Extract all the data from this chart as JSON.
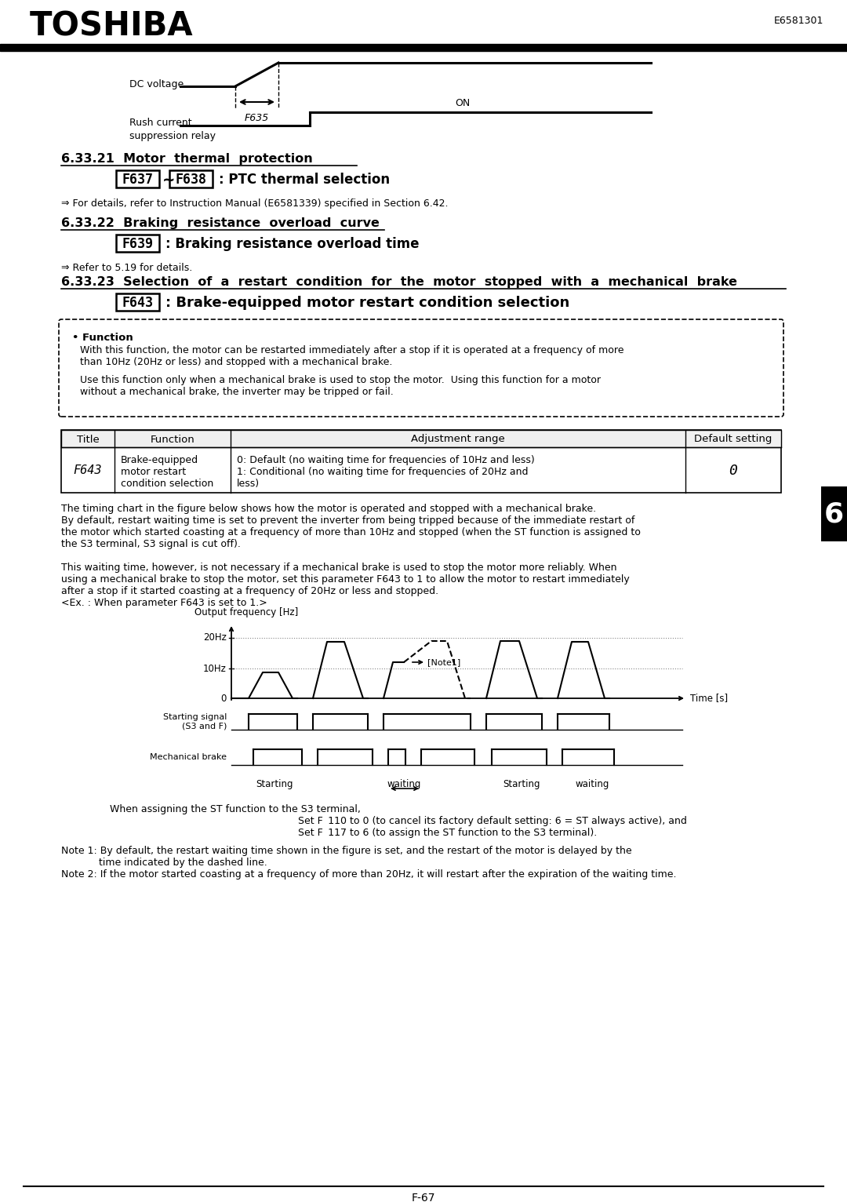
{
  "title_logo": "TOSHIBA",
  "doc_number": "E6581301",
  "page_number": "F-67",
  "bg_color": "#ffffff",
  "text_color": "#000000",
  "dc_voltage_label": "DC voltage",
  "f635_label": "F635",
  "rush_current_label": "Rush current\nsuppression relay",
  "on_label": "ON",
  "section_6_33_21_title": "6.33.21  Motor  thermal  protection",
  "section_6_33_22_title": "6.33.22  Braking  resistance  overload  curve",
  "section_6_33_23_title": "6.33.23  Selection  of  a  restart  condition  for  the  motor  stopped  with  a  mechanical  brake",
  "section_6_33_21_sub": ": PTC thermal selection",
  "section_6_33_22_sub": ": Braking resistance overload time",
  "section_6_33_23_sub": ": Brake-equipped motor restart condition selection",
  "section_6_33_21_note": "⇒ For details, refer to Instruction Manual (E6581339) specified in Section 6.42.",
  "section_6_33_22_note": "⇒ Refer to 5.19 for details.",
  "function_box_title": "• Function",
  "function_box_line1": "With this function, the motor can be restarted immediately after a stop if it is operated at a frequency of more",
  "function_box_line2": "than 10Hz (20Hz or less) and stopped with a mechanical brake.",
  "function_box_line3": "Use this function only when a mechanical brake is used to stop the motor.  Using this function for a motor",
  "function_box_line4": "without a mechanical brake, the inverter may be tripped or fail.",
  "table_headers": [
    "Title",
    "Function",
    "Adjustment range",
    "Default setting"
  ],
  "table_row_func1": "Brake-equipped",
  "table_row_func2": "motor restart",
  "table_row_func3": "condition selection",
  "table_row_adj1": "0: Default (no waiting time for frequencies of 10Hz and less)",
  "table_row_adj2": "1: Conditional (no waiting time for frequencies of 20Hz and",
  "table_row_adj3": "less)",
  "table_row_default": "0",
  "para1": "The timing chart in the figure below shows how the motor is operated and stopped with a mechanical brake.",
  "para2": "By default, restart waiting time is set to prevent the inverter from being tripped because of the immediate restart of",
  "para3": "the motor which started coasting at a frequency of more than 10Hz and stopped (when the ST function is assigned to",
  "para4": "the S3 terminal, S3 signal is cut off).",
  "para5": "This waiting time, however, is not necessary if a mechanical brake is used to stop the motor more reliably. When",
  "para7": "after a stop if it started coasting at a frequency of 20Hz or less and stopped.",
  "note1": "Note 1: By default, the restart waiting time shown in the figure is set, and the restart of the motor is delayed by the",
  "note1b": "            time indicated by the dashed line.",
  "note2": "Note 2: If the motor started coasting at a frequency of more than 20Hz, it will restart after the expiration of the waiting time."
}
